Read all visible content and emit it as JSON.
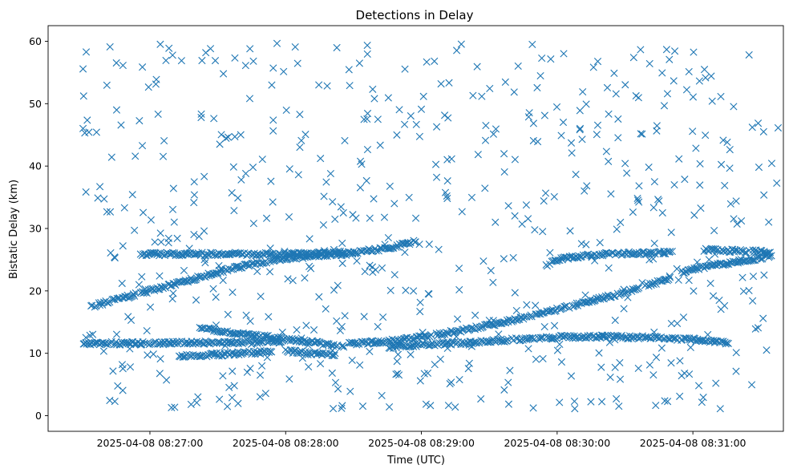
{
  "chart_data": {
    "type": "scatter",
    "title": "Detections in Delay",
    "xlabel": "Time (UTC)",
    "ylabel": "Bistatic Delay (km)",
    "x_ticks": [
      "2025-04-08 08:27:00",
      "2025-04-08 08:28:00",
      "2025-04-08 08:29:00",
      "2025-04-08 08:30:00",
      "2025-04-08 08:31:00"
    ],
    "y_ticks": [
      "0",
      "10",
      "20",
      "30",
      "40",
      "50",
      "60"
    ],
    "xlim": [
      "2025-04-08 08:26:15",
      "2025-04-08 08:31:40"
    ],
    "ylim": [
      -2.5,
      62.5
    ],
    "marker": "x",
    "color": "#1f77b4",
    "grid": false,
    "legend": "none",
    "series": [
      {
        "values_note": "",
        "tracks": [
          {
            "x": [
              "08:26:34",
              "08:26:45",
              "08:27:00",
              "08:27:15",
              "08:27:30",
              "08:27:45",
              "08:28:00",
              "08:28:15",
              "08:28:30"
            ],
            "y": [
              17.5,
              18.6,
              20.0,
              21.5,
              23.0,
              24.3,
              25.2,
              25.7,
              26.0
            ]
          },
          {
            "x": [
              "08:26:56",
              "08:27:15",
              "08:27:30",
              "08:27:45",
              "08:28:00",
              "08:28:15",
              "08:28:30",
              "08:28:45",
              "08:28:58"
            ],
            "y": [
              25.9,
              25.9,
              25.9,
              25.9,
              25.9,
              26.0,
              26.2,
              26.8,
              28.0
            ]
          },
          {
            "x": [
              "08:28:28",
              "08:28:45",
              "08:29:00",
              "08:29:15",
              "08:29:30",
              "08:29:45",
              "08:30:00",
              "08:30:15",
              "08:30:30",
              "08:30:50"
            ],
            "y": [
              11.5,
              11.9,
              12.6,
              13.5,
              14.5,
              15.7,
              17.0,
              18.4,
              19.8,
              22.0
            ]
          },
          {
            "x": [
              "08:26:30",
              "08:26:45",
              "08:27:00",
              "08:27:15",
              "08:27:30",
              "08:27:45",
              "08:27:59"
            ],
            "y": [
              11.6,
              11.6,
              11.6,
              11.7,
              11.7,
              11.8,
              11.9
            ]
          },
          {
            "x": [
              "08:27:22",
              "08:27:30",
              "08:27:45",
              "08:28:00",
              "08:28:15",
              "08:28:26"
            ],
            "y": [
              14.0,
              13.6,
              12.9,
              12.3,
              11.6,
              11.0
            ]
          },
          {
            "x": [
              "08:27:13",
              "08:27:30",
              "08:27:45",
              "08:27:54"
            ],
            "y": [
              9.5,
              9.8,
              10.1,
              10.3
            ]
          },
          {
            "x": [
              "08:28:00",
              "08:28:10",
              "08:28:22"
            ],
            "y": [
              10.4,
              10.0,
              9.8
            ]
          },
          {
            "x": [
              "08:28:45",
              "08:29:00",
              "08:29:15",
              "08:29:30",
              "08:29:45",
              "08:30:00",
              "08:30:15",
              "08:30:30",
              "08:30:45",
              "08:31:00",
              "08:31:16"
            ],
            "y": [
              11.0,
              11.4,
              11.6,
              11.9,
              12.3,
              12.6,
              12.7,
              12.6,
              12.5,
              12.2,
              11.6
            ]
          },
          {
            "x": [
              "08:29:55",
              "08:30:00",
              "08:30:15",
              "08:30:30",
              "08:30:50"
            ],
            "y": [
              24.0,
              25.0,
              25.8,
              26.0,
              26.1
            ]
          },
          {
            "x": [
              "08:30:55",
              "08:31:05",
              "08:31:15",
              "08:31:25",
              "08:31:35"
            ],
            "y": [
              23.0,
              23.8,
              24.4,
              25.0,
              25.6
            ]
          },
          {
            "x": [
              "08:31:05",
              "08:31:20",
              "08:31:35"
            ],
            "y": [
              26.6,
              26.4,
              26.2
            ]
          }
        ],
        "clutter": {
          "x_range": [
            "2025-04-08 08:26:30",
            "2025-04-08 08:31:38"
          ],
          "y_range": [
            0.5,
            59.8
          ],
          "count": 620
        }
      }
    ]
  }
}
